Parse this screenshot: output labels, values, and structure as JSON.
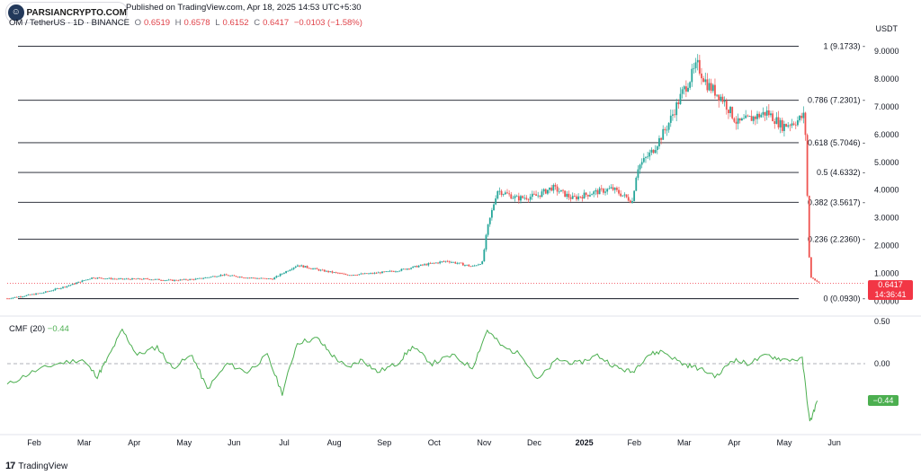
{
  "watermark": {
    "site": "PARSIANCRYPTO.COM",
    "published": "Published on TradingView.com, Apr 18, 2025 14:53 UTC+5:30"
  },
  "header": {
    "symbol": "OM / TetherUS · 1D · BINANCE",
    "open_label": "O",
    "open": "0.6519",
    "high_label": "H",
    "high": "0.6578",
    "low_label": "L",
    "low": "0.6152",
    "close_label": "C",
    "close": "0.6417",
    "change": "−0.0103 (−1.58%)"
  },
  "currency": "USDT",
  "current_price": {
    "value": "0.6417",
    "countdown": "14:36:41"
  },
  "cmf": {
    "label": "CMF (20)",
    "value": "−0.44",
    "tag": "−0.44"
  },
  "brand": "TradingView",
  "colors": {
    "up": "#26a69a",
    "down": "#ef5350",
    "fib_line": "#131722",
    "cmf": "#4caf50",
    "price_line": "#f23645"
  },
  "chart_data": {
    "type": "candlestick",
    "y_axis": {
      "ticks": [
        0.0,
        1.0,
        2.0,
        3.0,
        4.0,
        5.0,
        6.0,
        7.0,
        8.0,
        9.0
      ],
      "tick_labels": [
        "0.0000",
        "1.0000",
        "2.0000",
        "3.0000",
        "4.0000",
        "5.0000",
        "6.0000",
        "7.0000",
        "8.0000",
        "9.0000"
      ]
    },
    "x_axis": {
      "month_labels": [
        "Feb",
        "Mar",
        "Apr",
        "May",
        "Jun",
        "Jul",
        "Aug",
        "Sep",
        "Oct",
        "Nov",
        "Dec",
        "2025",
        "Feb",
        "Mar",
        "Apr",
        "May",
        "Jun"
      ]
    },
    "fib_levels": [
      {
        "ratio": "1",
        "price": 9.1733,
        "label": "1 (9.1733)"
      },
      {
        "ratio": "0.786",
        "price": 7.2301,
        "label": "0.786 (7.2301)"
      },
      {
        "ratio": "0.618",
        "price": 5.7046,
        "label": "0.618 (5.7046)"
      },
      {
        "ratio": "0.5",
        "price": 4.6332,
        "label": "0.5 (4.6332)"
      },
      {
        "ratio": "0.382",
        "price": 3.5617,
        "label": "0.382 (3.5617)"
      },
      {
        "ratio": "0.236",
        "price": 2.236,
        "label": "0.236 (2.2360)"
      },
      {
        "ratio": "0",
        "price": 0.093,
        "label": "0 (0.0930)"
      }
    ],
    "price_path": [
      [
        0,
        0.1
      ],
      [
        0.7,
        0.3
      ],
      [
        1.2,
        0.55
      ],
      [
        1.7,
        0.85
      ],
      [
        2.2,
        0.8
      ],
      [
        2.8,
        0.8
      ],
      [
        3.3,
        0.75
      ],
      [
        3.8,
        0.8
      ],
      [
        4.3,
        0.95
      ],
      [
        4.8,
        0.85
      ],
      [
        5.3,
        0.8
      ],
      [
        5.8,
        1.3
      ],
      [
        6.3,
        1.1
      ],
      [
        6.8,
        0.95
      ],
      [
        7.3,
        1.0
      ],
      [
        7.8,
        1.1
      ],
      [
        8.3,
        1.3
      ],
      [
        8.8,
        1.45
      ],
      [
        9.3,
        1.25
      ],
      [
        9.5,
        1.4
      ],
      [
        9.6,
        2.6
      ],
      [
        9.8,
        4.0
      ],
      [
        10.2,
        3.7
      ],
      [
        10.6,
        3.8
      ],
      [
        10.9,
        4.1
      ],
      [
        11.3,
        3.7
      ],
      [
        11.7,
        3.9
      ],
      [
        12.1,
        4.05
      ],
      [
        12.5,
        3.6
      ],
      [
        12.6,
        4.8
      ],
      [
        12.9,
        5.4
      ],
      [
        13.2,
        6.3
      ],
      [
        13.5,
        7.5
      ],
      [
        13.8,
        8.5
      ],
      [
        14.0,
        7.8
      ],
      [
        14.3,
        7.3
      ],
      [
        14.6,
        6.4
      ],
      [
        14.9,
        6.6
      ],
      [
        15.2,
        6.8
      ],
      [
        15.5,
        6.3
      ],
      [
        15.8,
        6.5
      ],
      [
        15.95,
        6.7
      ],
      [
        16.05,
        0.9
      ],
      [
        16.25,
        0.64
      ]
    ],
    "cmf_series": {
      "name": "CMF (20)",
      "y_ticks": [
        0.5,
        0.0
      ],
      "y_tick_labels": [
        "0.50",
        "0.00"
      ],
      "points": [
        [
          0,
          -0.25
        ],
        [
          0.5,
          -0.1
        ],
        [
          1.0,
          0.0
        ],
        [
          1.5,
          0.05
        ],
        [
          1.8,
          -0.15
        ],
        [
          2.0,
          0.05
        ],
        [
          2.3,
          0.4
        ],
        [
          2.6,
          0.1
        ],
        [
          3.0,
          0.2
        ],
        [
          3.3,
          -0.05
        ],
        [
          3.7,
          0.1
        ],
        [
          4.0,
          -0.3
        ],
        [
          4.4,
          0.0
        ],
        [
          4.8,
          -0.1
        ],
        [
          5.2,
          0.1
        ],
        [
          5.5,
          -0.35
        ],
        [
          5.8,
          0.25
        ],
        [
          6.2,
          0.3
        ],
        [
          6.5,
          0.1
        ],
        [
          6.8,
          -0.05
        ],
        [
          7.1,
          0.05
        ],
        [
          7.4,
          -0.1
        ],
        [
          7.8,
          0.0
        ],
        [
          8.1,
          0.2
        ],
        [
          8.5,
          0.0
        ],
        [
          8.9,
          0.1
        ],
        [
          9.3,
          -0.05
        ],
        [
          9.6,
          0.4
        ],
        [
          9.9,
          0.2
        ],
        [
          10.3,
          0.1
        ],
        [
          10.6,
          -0.2
        ],
        [
          11.0,
          0.05
        ],
        [
          11.4,
          0.0
        ],
        [
          11.8,
          0.1
        ],
        [
          12.2,
          -0.05
        ],
        [
          12.5,
          -0.1
        ],
        [
          12.8,
          0.1
        ],
        [
          13.1,
          0.15
        ],
        [
          13.5,
          0.0
        ],
        [
          13.8,
          -0.05
        ],
        [
          14.2,
          -0.15
        ],
        [
          14.5,
          0.05
        ],
        [
          14.8,
          0.0
        ],
        [
          15.2,
          0.1
        ],
        [
          15.5,
          0.05
        ],
        [
          15.9,
          0.05
        ],
        [
          16.05,
          -0.7
        ],
        [
          16.2,
          -0.44
        ]
      ]
    }
  }
}
